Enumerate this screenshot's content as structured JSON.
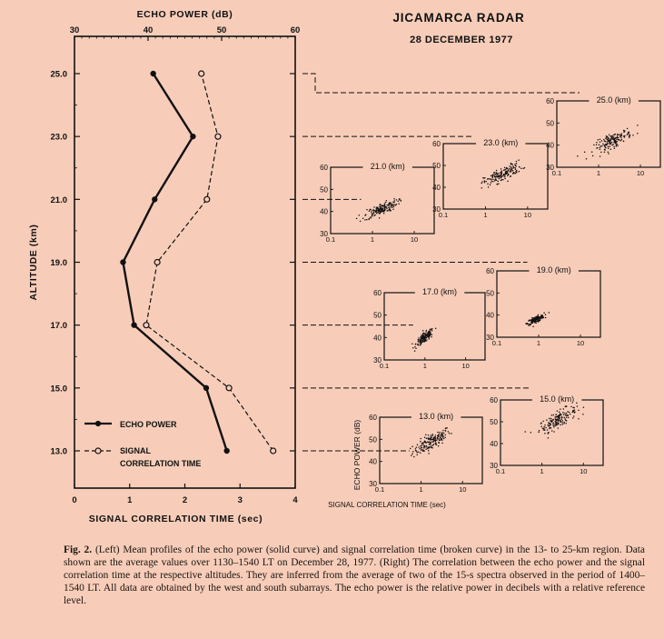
{
  "figure_title": "JICAMARCA RADAR",
  "figure_date": "28 DECEMBER 1977",
  "caption": {
    "label": "Fig. 2.",
    "text": "(Left) Mean profiles of the echo power (solid curve) and signal correlation time (broken curve) in the 13- to 25-km region. Data shown are the average values over 1130–1540 LT on December 28, 1977. (Right) The correlation between the echo power and the signal correlation time at the respective altitudes. They are inferred from the average of two of the 15-s spectra observed in the period of 1400–1540 LT. All data are obtained by the west and south subarrays. The echo power is the relative power in decibels with a relative reference level."
  },
  "chart_data": [
    {
      "type": "line",
      "top_axis_label": "ECHO POWER (dB)",
      "top_axis_ticks": [
        "30",
        "40",
        "50",
        "60"
      ],
      "top_axis_range": [
        30,
        60
      ],
      "xlabel": "SIGNAL CORRELATION TIME (sec)",
      "x_ticks": [
        "0",
        "1",
        "2",
        "3",
        "4"
      ],
      "x_range": [
        0,
        4
      ],
      "ylabel": "ALTITUDE (km)",
      "y_ticks": [
        "13.0",
        "15.0",
        "17.0",
        "19.0",
        "21.0",
        "23.0",
        "25.0"
      ],
      "y_range": [
        12,
        26
      ],
      "legend": [
        "ECHO POWER",
        "SIGNAL",
        "CORRELATION TIME"
      ],
      "series": [
        {
          "name": "ECHO POWER",
          "axis": "top",
          "style": "solid-filled",
          "points": [
            [
              13.0,
              50.7
            ],
            [
              15.0,
              47.9
            ],
            [
              17.0,
              38.1
            ],
            [
              19.0,
              36.6
            ],
            [
              21.0,
              40.9
            ],
            [
              23.0,
              46.1
            ],
            [
              25.0,
              40.7
            ]
          ]
        },
        {
          "name": "SIGNAL CORRELATION TIME",
          "axis": "bottom",
          "style": "dashed-open",
          "points": [
            [
              13.0,
              3.6
            ],
            [
              15.0,
              2.8
            ],
            [
              17.0,
              1.3
            ],
            [
              19.0,
              1.5
            ],
            [
              21.0,
              2.4
            ],
            [
              23.0,
              2.6
            ],
            [
              25.0,
              2.3
            ]
          ]
        }
      ]
    },
    {
      "type": "scatter",
      "panel_label": "13.0 (km)",
      "xlabel": "SIGNAL CORRELATION TIME (sec)",
      "ylabel": "ECHO POWER (dB)",
      "x_scale": "log",
      "x_range": [
        0.1,
        30
      ],
      "y_range": [
        30,
        60
      ],
      "y_ticks": [
        "30",
        "40",
        "50",
        "60"
      ],
      "x_ticks": [
        "0.1",
        "1",
        "10"
      ],
      "cluster": {
        "center": [
          1.8,
          49
        ],
        "spread": [
          0.45,
          4
        ]
      }
    },
    {
      "type": "scatter",
      "panel_label": "15.0 (km)",
      "x_scale": "log",
      "x_range": [
        0.1,
        30
      ],
      "y_range": [
        30,
        60
      ],
      "y_ticks": [
        "30",
        "40",
        "50",
        "60"
      ],
      "x_ticks": [
        "0.1",
        "1",
        "10"
      ],
      "cluster": {
        "center": [
          2.4,
          51
        ],
        "spread": [
          0.45,
          4
        ]
      }
    },
    {
      "type": "scatter",
      "panel_label": "17.0 (km)",
      "x_scale": "log",
      "x_range": [
        0.1,
        30
      ],
      "y_range": [
        30,
        60
      ],
      "y_ticks": [
        "30",
        "40",
        "50",
        "60"
      ],
      "x_ticks": [
        "0.1",
        "1",
        "10"
      ],
      "cluster": {
        "center": [
          1.0,
          40
        ],
        "spread": [
          0.22,
          2.5
        ]
      }
    },
    {
      "type": "scatter",
      "panel_label": "19.0 (km)",
      "x_scale": "log",
      "x_range": [
        0.1,
        30
      ],
      "y_range": [
        30,
        60
      ],
      "y_ticks": [
        "30",
        "40",
        "50",
        "60"
      ],
      "x_ticks": [
        "0.1",
        "1",
        "10"
      ],
      "cluster": {
        "center": [
          0.85,
          38
        ],
        "spread": [
          0.2,
          1.5
        ]
      }
    },
    {
      "type": "scatter",
      "panel_label": "21.0 (km)",
      "x_scale": "log",
      "x_range": [
        0.1,
        30
      ],
      "y_range": [
        30,
        60
      ],
      "y_ticks": [
        "30",
        "40",
        "50",
        "60"
      ],
      "x_ticks": [
        "0.1",
        "1",
        "10"
      ],
      "cluster": {
        "center": [
          1.6,
          41
        ],
        "spread": [
          0.4,
          2.8
        ]
      }
    },
    {
      "type": "scatter",
      "panel_label": "23.0 (km)",
      "x_scale": "log",
      "x_range": [
        0.1,
        30
      ],
      "y_range": [
        30,
        60
      ],
      "y_ticks": [
        "30",
        "40",
        "50",
        "60"
      ],
      "x_ticks": [
        "0.1",
        "1",
        "10"
      ],
      "cluster": {
        "center": [
          2.6,
          46
        ],
        "spread": [
          0.45,
          3.5
        ]
      }
    },
    {
      "type": "scatter",
      "panel_label": "25.0 (km)",
      "x_scale": "log",
      "x_range": [
        0.1,
        30
      ],
      "y_range": [
        30,
        60
      ],
      "y_ticks": [
        "30",
        "40",
        "50",
        "60"
      ],
      "x_ticks": [
        "0.1",
        "1",
        "10"
      ],
      "cluster": {
        "center": [
          2.2,
          42
        ],
        "spread": [
          0.45,
          3.5
        ]
      }
    }
  ]
}
